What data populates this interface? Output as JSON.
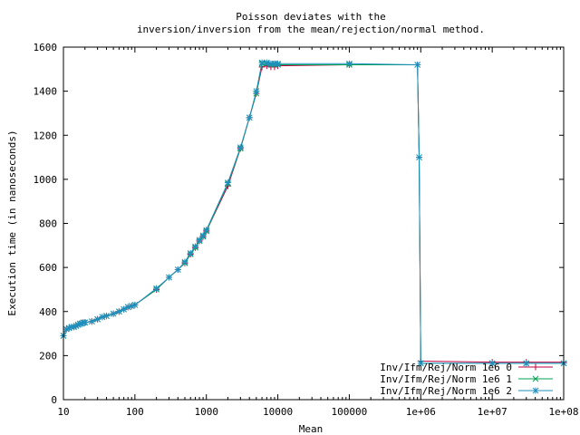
{
  "chart_data": {
    "type": "line",
    "title_lines": [
      "Poisson deviates with the",
      "inversion/inversion from the mean/rejection/normal method."
    ],
    "xlabel": "Mean",
    "ylabel": "Execution time (in nanoseconds)",
    "x_scale": "log",
    "xlim": [
      10,
      100000000
    ],
    "ylim": [
      0,
      1600
    ],
    "x_ticks": [
      10,
      100,
      1000,
      10000,
      100000,
      1000000,
      10000000,
      100000000
    ],
    "x_tick_labels": [
      "10",
      "100",
      "1000",
      "10000",
      "100000",
      "1e+06",
      "1e+07",
      "1e+08"
    ],
    "y_ticks": [
      0,
      200,
      400,
      600,
      800,
      1000,
      1200,
      1400,
      1600
    ],
    "y_tick_labels": [
      "0",
      "200",
      "400",
      "600",
      "800",
      "1000",
      "1200",
      "1400",
      "1600"
    ],
    "grid": false,
    "legend_position": "bottom-right",
    "colors": {
      "axis": "#000000"
    },
    "series": [
      {
        "name": "Inv/Ifm/Rej/Norm 1e6 0",
        "color": "#c00040",
        "marker": "plus",
        "x": [
          10,
          11,
          12,
          13,
          14,
          15,
          16,
          17,
          18,
          19,
          20,
          25,
          30,
          35,
          40,
          50,
          60,
          70,
          80,
          90,
          100,
          200,
          300,
          400,
          500,
          600,
          700,
          800,
          900,
          1000,
          2000,
          3000,
          4000,
          5000,
          6000,
          7000,
          8000,
          9000,
          10000,
          100000,
          900000,
          950000,
          1000000,
          10000000,
          30000000,
          100000000
        ],
        "y": [
          290,
          320,
          325,
          330,
          330,
          335,
          340,
          345,
          345,
          350,
          350,
          355,
          365,
          375,
          380,
          390,
          400,
          410,
          420,
          425,
          430,
          500,
          555,
          590,
          620,
          660,
          690,
          720,
          740,
          765,
          970,
          1140,
          1280,
          1390,
          1510,
          1515,
          1510,
          1510,
          1515,
          1520,
          1520,
          1100,
          175,
          170,
          170,
          170
        ]
      },
      {
        "name": "Inv/Ifm/Rej/Norm 1e6 1",
        "color": "#00a050",
        "marker": "x",
        "x": [
          10,
          11,
          12,
          13,
          14,
          15,
          16,
          17,
          18,
          19,
          20,
          25,
          30,
          35,
          40,
          50,
          60,
          70,
          80,
          90,
          100,
          200,
          300,
          400,
          500,
          600,
          700,
          800,
          900,
          1000,
          2000,
          3000,
          4000,
          5000,
          6000,
          7000,
          8000,
          9000,
          10000,
          100000,
          900000,
          950000,
          1000000,
          10000000,
          30000000,
          100000000
        ],
        "y": [
          290,
          320,
          325,
          330,
          330,
          335,
          340,
          345,
          345,
          350,
          350,
          355,
          365,
          375,
          380,
          390,
          400,
          410,
          420,
          425,
          430,
          500,
          555,
          590,
          620,
          660,
          690,
          720,
          740,
          765,
          980,
          1140,
          1280,
          1390,
          1525,
          1525,
          1520,
          1520,
          1520,
          1520,
          1520,
          1100,
          165,
          165,
          165,
          165
        ]
      },
      {
        "name": "Inv/Ifm/Rej/Norm 1e6 2",
        "color": "#1f8fbf",
        "marker": "star",
        "x": [
          10,
          11,
          12,
          13,
          14,
          15,
          16,
          17,
          18,
          19,
          20,
          25,
          30,
          35,
          40,
          50,
          60,
          70,
          80,
          90,
          100,
          200,
          300,
          400,
          500,
          600,
          700,
          800,
          900,
          1000,
          2000,
          3000,
          4000,
          5000,
          6000,
          7000,
          8000,
          9000,
          10000,
          100000,
          900000,
          950000,
          1000000,
          10000000,
          30000000,
          100000000
        ],
        "y": [
          290,
          320,
          325,
          330,
          330,
          335,
          340,
          345,
          345,
          350,
          350,
          355,
          365,
          375,
          380,
          390,
          400,
          410,
          420,
          425,
          430,
          505,
          555,
          590,
          625,
          665,
          695,
          725,
          745,
          770,
          985,
          1145,
          1280,
          1400,
          1530,
          1530,
          1525,
          1525,
          1525,
          1525,
          1520,
          1100,
          165,
          165,
          165,
          165
        ]
      }
    ]
  }
}
